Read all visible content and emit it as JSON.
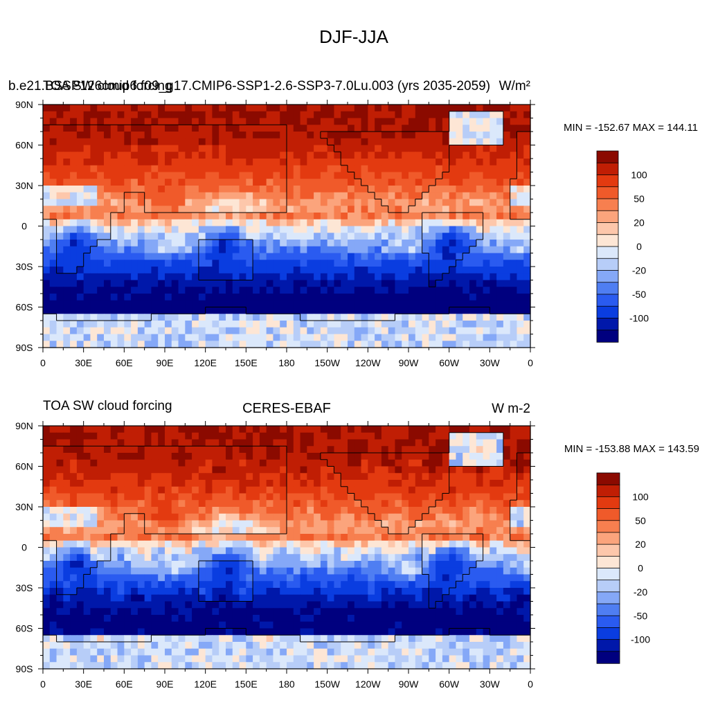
{
  "figure": {
    "title": "DJF-JJA"
  },
  "colors": {
    "levels": [
      -100,
      -50,
      -20,
      0,
      20,
      50,
      100
    ],
    "palette": [
      "#00007f",
      "#0018aa",
      "#0a3de0",
      "#2a5bf0",
      "#4f7ef2",
      "#85a8f7",
      "#b7cdf8",
      "#dbe8fb",
      "#fde6d5",
      "#fdc7ab",
      "#fba47c",
      "#f77f4f",
      "#f05a2a",
      "#e33a10",
      "#c01e04",
      "#8b0a00"
    ],
    "land_outline": "#000000"
  },
  "chart_data": [
    {
      "type": "heatmap",
      "left_title": "b.e21.BSSP126cmip6.f09_g17.CMIP6-SSP1-2.6-SSP3-7.0Lu.003 (yrs 2035-2059)",
      "left_title_overlay": "TOA SW cloud forcing",
      "center_title": "",
      "units": "W/m²",
      "stats": "MIN = -152.67 MAX = 144.11",
      "x": {
        "ticks": [
          "0",
          "30E",
          "60E",
          "90E",
          "120E",
          "150E",
          "180",
          "150W",
          "120W",
          "90W",
          "60W",
          "30W",
          "0"
        ],
        "range": [
          0,
          360
        ]
      },
      "y": {
        "ticks": [
          "90N",
          "60N",
          "30N",
          "0",
          "30S",
          "60S",
          "90S"
        ],
        "range": [
          90,
          -90
        ]
      },
      "colorbar": {
        "labels": [
          "100",
          "50",
          "20",
          "0",
          "-20",
          "-50",
          "-100"
        ]
      }
    },
    {
      "type": "heatmap",
      "left_title": "TOA SW cloud forcing",
      "left_title_overlay": "",
      "center_title": "CERES-EBAF",
      "units": "W m-2",
      "stats": "MIN = -153.88 MAX = 143.59",
      "x": {
        "ticks": [
          "0",
          "30E",
          "60E",
          "90E",
          "120E",
          "150E",
          "180",
          "150W",
          "120W",
          "90W",
          "60W",
          "30W",
          "0"
        ],
        "range": [
          0,
          360
        ]
      },
      "y": {
        "ticks": [
          "90N",
          "60N",
          "30N",
          "0",
          "30S",
          "60S",
          "90S"
        ],
        "range": [
          90,
          -90
        ]
      },
      "colorbar": {
        "labels": [
          "100",
          "50",
          "20",
          "0",
          "-20",
          "-50",
          "-100"
        ]
      }
    }
  ]
}
